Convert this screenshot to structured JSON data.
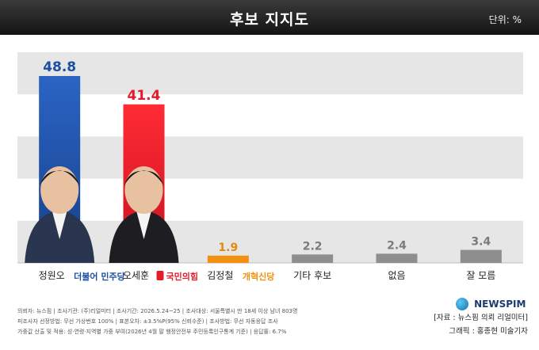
{
  "header": {
    "title": "후보 지지도",
    "unit": "단위: %"
  },
  "chart_data": {
    "type": "bar",
    "title": "후보 지지도",
    "unit": "단위: %",
    "categories": [
      "정원오",
      "오세훈",
      "김정철",
      "기타 후보",
      "없음",
      "잘 모름"
    ],
    "values": [
      48.8,
      41.4,
      1.9,
      2.2,
      2.4,
      3.4
    ],
    "value_labels": [
      "48.8",
      "41.4",
      "1.9",
      "2.2",
      "2.4",
      "3.4"
    ],
    "party_labels": [
      "더불어 민주당",
      "국민의힘",
      "개혁신당",
      "",
      "",
      ""
    ],
    "ylim": [
      0,
      55
    ],
    "grid": "horizontal bands",
    "colors": [
      "#1d4fa0",
      "#e31c2a",
      "#f29111",
      "#8e8e8e",
      "#8e8e8e",
      "#8e8e8e"
    ]
  },
  "footnote": {
    "lines": [
      "의뢰자: 뉴스핌 | 조사기관: (주)리얼미터 | 조사기간: 2026.5.24~25 | 조사대상: 서울특별시 만 18세 이상 남녀 803명",
      "피조사자 선정방법: 무선 가상번호 100% | 표본오차: ±3.5%P(95% 신뢰수준) | 조사방법: 무선 자동응답 조사",
      "가중값 산출 및 적용: 성·연령·지역별 가중 부여(2026년 4월 말 행정안전부 주민등록인구통계 기준) | 응답률: 6.7%"
    ]
  },
  "logo": {
    "text": "NEWSPIM"
  },
  "credits": {
    "line1": "[자료 : 뉴스핌 의뢰 리얼미터]",
    "line2": "그래픽 : 홍종현 미술기자"
  }
}
